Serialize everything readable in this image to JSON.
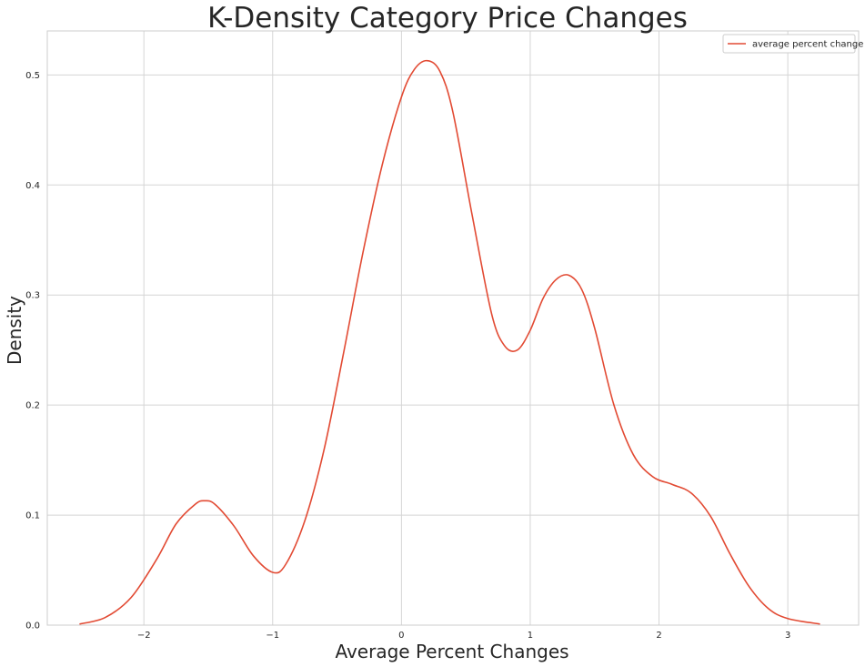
{
  "chart_data": {
    "type": "line",
    "title": "K-Density Category Price Changes",
    "xlabel": "Average Percent Changes",
    "ylabel": "Density",
    "xlim": [
      -2.75,
      3.55
    ],
    "ylim": [
      0,
      0.54
    ],
    "x_ticks": [
      {
        "value": -2,
        "label": "−2"
      },
      {
        "value": -1,
        "label": "−1"
      },
      {
        "value": 0,
        "label": "0"
      },
      {
        "value": 1,
        "label": "1"
      },
      {
        "value": 2,
        "label": "2"
      },
      {
        "value": 3,
        "label": "3"
      }
    ],
    "y_ticks": [
      {
        "value": 0,
        "label": "0.0"
      },
      {
        "value": 0.1,
        "label": "0.1"
      },
      {
        "value": 0.2,
        "label": "0.2"
      },
      {
        "value": 0.3,
        "label": "0.3"
      },
      {
        "value": 0.4,
        "label": "0.4"
      },
      {
        "value": 0.5,
        "label": "0.5"
      }
    ],
    "grid": true,
    "legend_position": "top-right",
    "series": [
      {
        "name": "average percent change",
        "color": "#e24a33",
        "x": [
          -2.5,
          -2.3,
          -2.1,
          -1.9,
          -1.75,
          -1.6,
          -1.53,
          -1.45,
          -1.3,
          -1.15,
          -1.0,
          -0.9,
          -0.75,
          -0.6,
          -0.45,
          -0.3,
          -0.15,
          0.0,
          0.1,
          0.2,
          0.3,
          0.4,
          0.55,
          0.7,
          0.8,
          0.9,
          1.0,
          1.1,
          1.2,
          1.3,
          1.4,
          1.5,
          1.65,
          1.8,
          1.95,
          2.1,
          2.25,
          2.4,
          2.55,
          2.7,
          2.85,
          3.0,
          3.25
        ],
        "y": [
          0.001,
          0.007,
          0.025,
          0.06,
          0.092,
          0.11,
          0.113,
          0.11,
          0.09,
          0.063,
          0.048,
          0.055,
          0.095,
          0.16,
          0.247,
          0.338,
          0.418,
          0.48,
          0.505,
          0.513,
          0.503,
          0.466,
          0.372,
          0.283,
          0.254,
          0.25,
          0.268,
          0.297,
          0.314,
          0.318,
          0.305,
          0.27,
          0.2,
          0.155,
          0.135,
          0.128,
          0.12,
          0.099,
          0.065,
          0.035,
          0.015,
          0.006,
          0.001
        ]
      }
    ]
  }
}
